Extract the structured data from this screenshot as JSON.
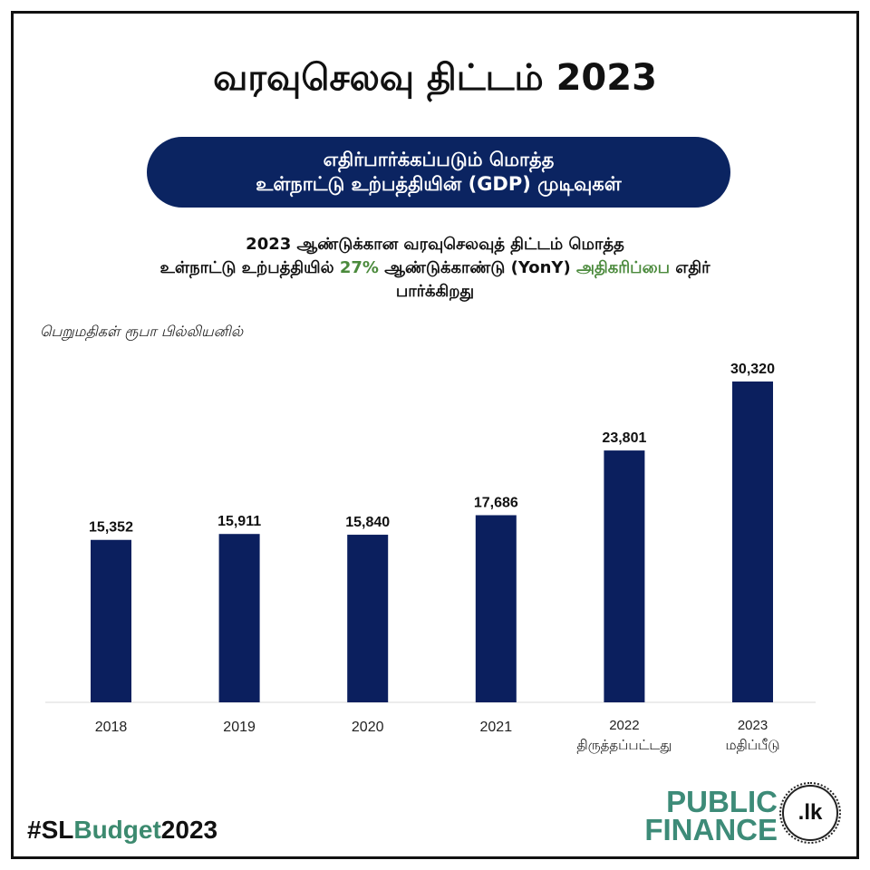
{
  "title": "வரவுசெலவு திட்டம் 2023",
  "banner": {
    "line1": "எதிர்பார்க்கப்படும் மொத்த",
    "line2": "உள்நாட்டு உற்பத்தியின் (GDP) முடிவுகள்"
  },
  "subtitle": {
    "line1": "2023 ஆண்டுக்கான வரவுசெலவுத் திட்டம் மொத்த",
    "line2_part1": "உள்நாட்டு உற்பத்தியில்",
    "line2_highlight1": "27%",
    "line2_part2": "ஆண்டுக்காண்டு (YonY)",
    "line2_highlight2": "அதிகரிப்பை",
    "line2_part3": "எதிர்",
    "line3": "பார்க்கிறது"
  },
  "colors": {
    "bar": "#0b1f5e",
    "banner": "#0b2461",
    "highlight": "#4b8a3c",
    "brand": "#3d8b78",
    "text": "#111111"
  },
  "chart_data": {
    "type": "bar",
    "categories": [
      "2018",
      "2019",
      "2020",
      "2021",
      "2022",
      "2023"
    ],
    "category_sublabels": [
      "",
      "",
      "",
      "",
      "திருத்தப்பட்டது",
      "மதிப்பீடு"
    ],
    "values": [
      15352,
      15911,
      15840,
      17686,
      23801,
      30320
    ],
    "data_labels": [
      "15,352",
      "15,911",
      "15,840",
      "17,686",
      "23,801",
      "30,320"
    ],
    "xlabel": "",
    "ylabel": "பெறுமதிகள் ரூபா பில்லியனில்",
    "ylim": [
      0,
      34000
    ],
    "grid": false,
    "legend": "none"
  },
  "footer": {
    "hashtag_prefix": "#SL",
    "hashtag_highlight": "Budget",
    "hashtag_suffix": "2023"
  },
  "logo": {
    "line1": "PUBLIC",
    "line2": "FINANCE",
    "badge": ".lk"
  }
}
